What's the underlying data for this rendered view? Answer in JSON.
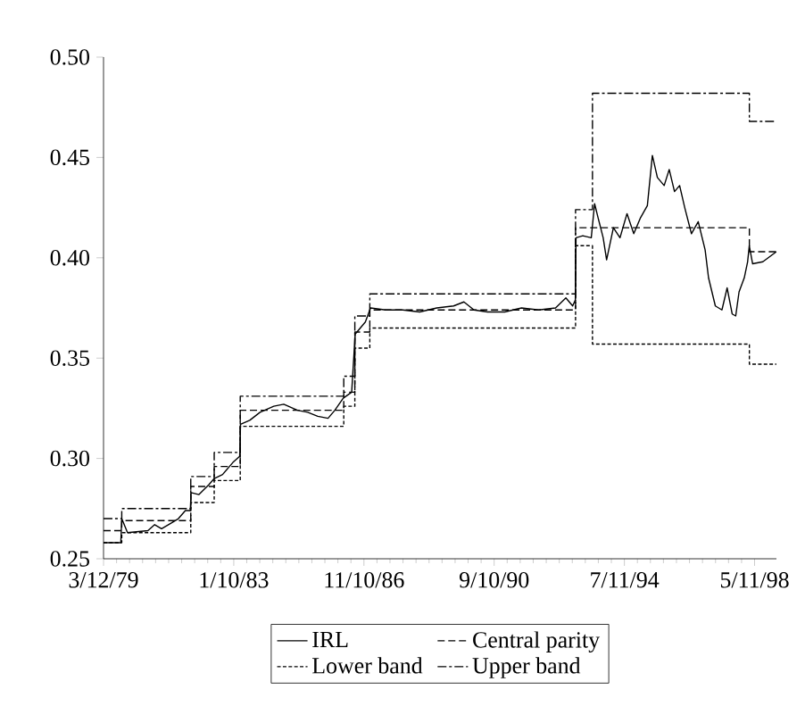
{
  "chart_data": {
    "type": "line",
    "legend": "bottom",
    "xlim": [
      "1979-03-12",
      "1999-01-01"
    ],
    "ylim": [
      0.25,
      0.5
    ],
    "xticks": [
      {
        "value": "1979-03-12",
        "label": "3/12/79"
      },
      {
        "value": "1983-01-10",
        "label": "1/10/83"
      },
      {
        "value": "1986-11-10",
        "label": "11/10/86"
      },
      {
        "value": "1990-09-10",
        "label": "9/10/90"
      },
      {
        "value": "1994-07-11",
        "label": "7/11/94"
      },
      {
        "value": "1998-05-11",
        "label": "5/11/98"
      }
    ],
    "yticks": [
      0.25,
      {
        "value": 0.3,
        "label": "0.30"
      },
      0.35,
      {
        "value": 0.4,
        "label": "0.40"
      },
      0.45,
      {
        "value": 0.5,
        "label": "0.50"
      }
    ],
    "series": [
      {
        "name": "IRL",
        "line_style": "solid",
        "color": "#000000",
        "x": [
          "1979-03-12",
          "1979-09-14",
          "1979-09-24",
          "1979-11-25",
          "1980-07-01",
          "1980-09-12",
          "1980-11-25",
          "1981-03-15",
          "1981-05-25",
          "1981-08-08",
          "1981-09-30",
          "1981-10-08",
          "1982-01-01",
          "1982-04-20",
          "1982-06-15",
          "1982-09-12",
          "1983-01-01",
          "1983-03-15",
          "1983-03-24",
          "1983-07-01",
          "1983-10-20",
          "1984-03-15",
          "1984-07-01",
          "1984-11-25",
          "1985-03-15",
          "1985-07-01",
          "1985-10-20",
          "1986-01-01",
          "1986-04-01",
          "1986-07-01",
          "1986-08-08",
          "1986-11-25",
          "1987-01-20",
          "1987-07-01",
          "1988-01-01",
          "1988-07-01",
          "1989-01-01",
          "1989-07-01",
          "1989-10-20",
          "1990-02-05",
          "1990-07-01",
          "1991-01-01",
          "1991-07-01",
          "1992-01-01",
          "1992-07-01",
          "1992-10-20",
          "1993-01-01",
          "1993-01-30",
          "1993-02-06",
          "1993-04-20",
          "1993-07-20",
          "1993-08-25",
          "1993-10-01",
          "1993-11-25",
          "1994-01-01",
          "1994-03-15",
          "1994-05-25",
          "1994-08-08",
          "1994-10-20",
          "1995-01-01",
          "1995-03-15",
          "1995-05-08",
          "1995-07-01",
          "1995-09-12",
          "1995-11-05",
          "1996-01-01",
          "1996-02-25",
          "1996-04-20",
          "1996-07-01",
          "1996-09-12",
          "1996-11-25",
          "1997-01-01",
          "1997-03-15",
          "1997-05-25",
          "1997-07-20",
          "1997-09-12",
          "1997-10-20",
          "1997-11-25",
          "1998-01-20",
          "1998-02-25",
          "1998-03-15",
          "1998-04-20",
          "1998-08-08",
          "1998-12-31"
        ],
        "values": [
          0.258,
          0.258,
          0.27,
          0.263,
          0.264,
          0.267,
          0.265,
          0.268,
          0.27,
          0.274,
          0.274,
          0.283,
          0.282,
          0.287,
          0.29,
          0.292,
          0.298,
          0.301,
          0.317,
          0.319,
          0.323,
          0.326,
          0.327,
          0.324,
          0.323,
          0.321,
          0.32,
          0.324,
          0.33,
          0.333,
          0.362,
          0.368,
          0.375,
          0.374,
          0.374,
          0.373,
          0.375,
          0.376,
          0.378,
          0.374,
          0.373,
          0.373,
          0.375,
          0.374,
          0.375,
          0.38,
          0.376,
          0.379,
          0.41,
          0.411,
          0.41,
          0.427,
          0.42,
          0.41,
          0.399,
          0.415,
          0.41,
          0.422,
          0.412,
          0.42,
          0.426,
          0.451,
          0.44,
          0.436,
          0.444,
          0.433,
          0.436,
          0.425,
          0.412,
          0.418,
          0.404,
          0.39,
          0.376,
          0.374,
          0.385,
          0.372,
          0.371,
          0.383,
          0.39,
          0.398,
          0.406,
          0.397,
          0.398,
          0.403
        ]
      },
      {
        "name": "Central parity",
        "type": "step",
        "line_style": "dashed",
        "color": "#000000",
        "x": [
          "1979-03-12",
          "1979-09-24",
          "1981-10-05",
          "1982-06-14",
          "1983-03-21",
          "1986-04-07",
          "1986-08-04",
          "1987-01-12",
          "1993-02-01",
          "1993-08-02",
          "1998-03-16",
          "1998-12-31"
        ],
        "values": [
          0.264,
          0.269,
          0.286,
          0.296,
          0.324,
          0.333,
          0.363,
          0.374,
          0.415,
          0.415,
          0.403,
          0.403
        ]
      },
      {
        "name": "Lower band",
        "type": "step",
        "line_style": "dotted",
        "color": "#000000",
        "x": [
          "1979-03-12",
          "1979-09-24",
          "1981-10-05",
          "1982-06-14",
          "1983-03-21",
          "1986-04-07",
          "1986-08-04",
          "1987-01-12",
          "1993-02-01",
          "1993-08-02",
          "1998-03-16",
          "1998-12-31"
        ],
        "values": [
          0.258,
          0.263,
          0.278,
          0.289,
          0.316,
          0.326,
          0.355,
          0.365,
          0.406,
          0.357,
          0.347,
          0.347
        ]
      },
      {
        "name": "Upper band",
        "type": "step",
        "line_style": "dashdot",
        "color": "#000000",
        "x": [
          "1979-03-12",
          "1979-09-24",
          "1981-10-05",
          "1982-06-14",
          "1983-03-21",
          "1986-04-07",
          "1986-08-04",
          "1987-01-12",
          "1993-02-01",
          "1993-08-02",
          "1998-03-16",
          "1998-12-31"
        ],
        "values": [
          0.27,
          0.275,
          0.291,
          0.303,
          0.331,
          0.341,
          0.371,
          0.382,
          0.424,
          0.482,
          0.468,
          0.468
        ]
      }
    ]
  }
}
